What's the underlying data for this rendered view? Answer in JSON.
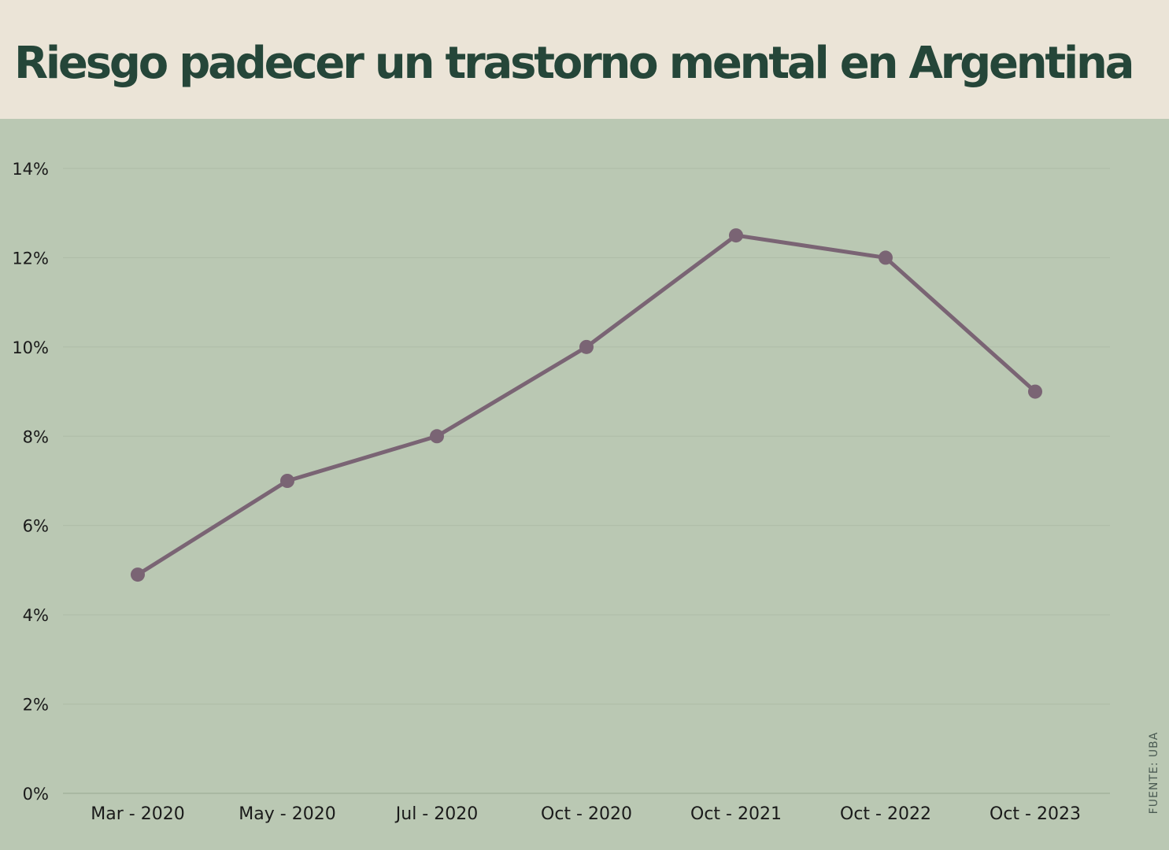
{
  "header": {
    "title": "Riesgo padecer un trastorno mental en Argentina"
  },
  "footer": {
    "source": "FUENTE: UBA"
  },
  "colors": {
    "header_bg": "#ebe4d7",
    "plot_bg": "#bac8b3",
    "title": "#254639",
    "line": "#7a6474",
    "grid": "#aebca7",
    "axis_text": "#1a1a1a"
  },
  "chart_data": {
    "type": "line",
    "title": "Riesgo padecer un trastorno mental en Argentina",
    "xlabel": "",
    "ylabel": "",
    "categories": [
      "Mar - 2020",
      "May - 2020",
      "Jul - 2020",
      "Oct - 2020",
      "Oct - 2021",
      "Oct - 2022",
      "Oct - 2023"
    ],
    "series": [
      {
        "values": [
          4.9,
          7.0,
          8.0,
          10.0,
          12.5,
          12.0,
          9.0
        ]
      }
    ],
    "ylim": [
      0,
      14
    ],
    "y_ticks": [
      0,
      2,
      4,
      6,
      8,
      10,
      12,
      14
    ],
    "y_tick_labels": [
      "0%",
      "2%",
      "4%",
      "6%",
      "8%",
      "10%",
      "12%",
      "14%"
    ],
    "grid": true,
    "legend": "none"
  }
}
